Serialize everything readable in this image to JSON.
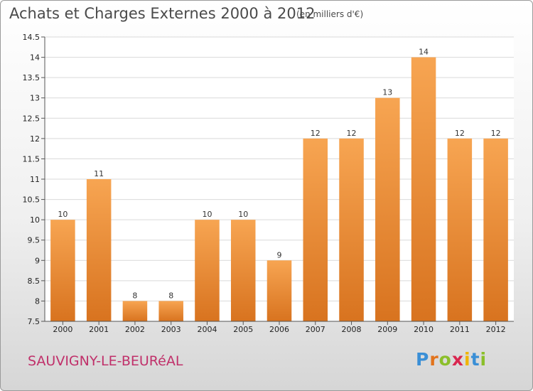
{
  "header": {
    "title": "Achats et Charges Externes 2000 à 2012",
    "unit": "(en milliers d'€)"
  },
  "footer": {
    "city": "SAUVIGNY-LE-BEURéAL",
    "logo": {
      "letters": [
        "P",
        "r",
        "o",
        "x",
        "i",
        "t",
        "i"
      ],
      "colors": [
        "#3a8fd6",
        "#e2731c",
        "#8bbf2a",
        "#d9264f",
        "#f0b400",
        "#3a8fd6",
        "#8bbf2a"
      ]
    }
  },
  "colors": {
    "bar_light": "#f7a552",
    "bar_dark": "#d8731f",
    "plot_bg": "#ffffff",
    "grid": "#d9d9d9",
    "axis": "#555555"
  },
  "chart_data": {
    "type": "bar",
    "title": "Achats et Charges Externes 2000 à 2012",
    "subtitle": "(en milliers d'€)",
    "xlabel": "",
    "ylabel": "",
    "categories": [
      "2000",
      "2001",
      "2002",
      "2003",
      "2004",
      "2005",
      "2006",
      "2007",
      "2008",
      "2009",
      "2010",
      "2011",
      "2012"
    ],
    "values": [
      10,
      11,
      8,
      8,
      10,
      10,
      9,
      12,
      12,
      13,
      14,
      12,
      12
    ],
    "data_labels": [
      "10",
      "11",
      "8",
      "8",
      "10",
      "10",
      "9",
      "12",
      "12",
      "13",
      "14",
      "12",
      "12"
    ],
    "ylim": [
      7.5,
      14.5
    ],
    "yticks": [
      7.5,
      8,
      8.5,
      9,
      9.5,
      10,
      10.5,
      11,
      11.5,
      12,
      12.5,
      13,
      13.5,
      14,
      14.5
    ],
    "ytick_labels": [
      "7.5",
      "8",
      "8.5",
      "9",
      "9.5",
      "10",
      "10.5",
      "11",
      "11.5",
      "12",
      "12.5",
      "13",
      "13.5",
      "14",
      "14.5"
    ],
    "grid": true,
    "legend": "none"
  }
}
